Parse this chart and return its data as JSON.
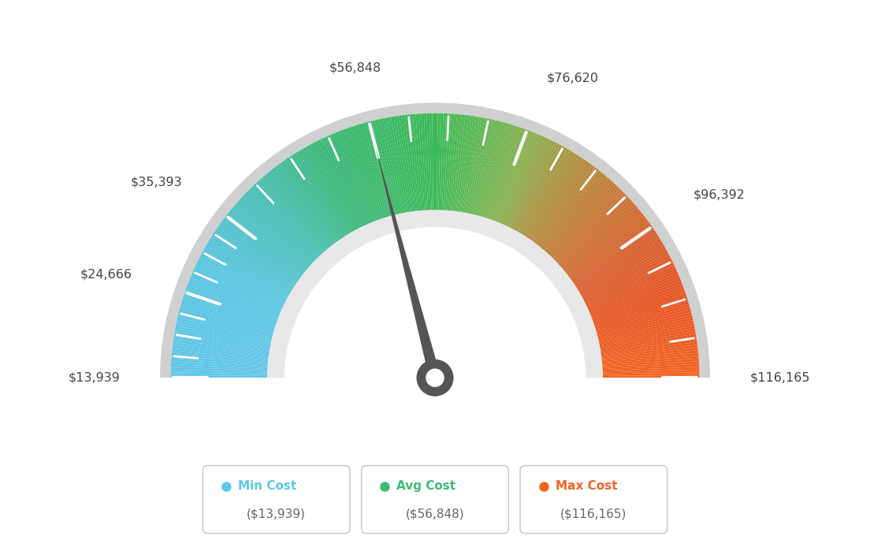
{
  "min_value": 13939,
  "max_value": 116165,
  "avg_value": 56848,
  "tick_labels": [
    "$13,939",
    "$24,666",
    "$35,393",
    "$56,848",
    "$76,620",
    "$96,392",
    "$116,165"
  ],
  "tick_values": [
    13939,
    24666,
    35393,
    56848,
    76620,
    96392,
    116165
  ],
  "legend_labels": [
    "Min Cost",
    "Avg Cost",
    "Max Cost"
  ],
  "legend_values": [
    "($13,939)",
    "($56,848)",
    "($116,165)"
  ],
  "legend_colors": [
    "#5bc8e8",
    "#3dba74",
    "#f26522"
  ],
  "color_stops": [
    [
      0.0,
      "#62c6e8"
    ],
    [
      0.15,
      "#5ac5e0"
    ],
    [
      0.25,
      "#4bbfb8"
    ],
    [
      0.35,
      "#3db87a"
    ],
    [
      0.45,
      "#3dba62"
    ],
    [
      0.5,
      "#3dba58"
    ],
    [
      0.55,
      "#5db858"
    ],
    [
      0.62,
      "#8ab050"
    ],
    [
      0.68,
      "#b09040"
    ],
    [
      0.75,
      "#c87838"
    ],
    [
      0.82,
      "#d86030"
    ],
    [
      0.9,
      "#e85525"
    ],
    [
      1.0,
      "#f26522"
    ]
  ],
  "background_color": "#ffffff",
  "needle_color": "#555555",
  "outer_border_color": "#d8d8d8",
  "inner_border_color": "#e0e0e0"
}
